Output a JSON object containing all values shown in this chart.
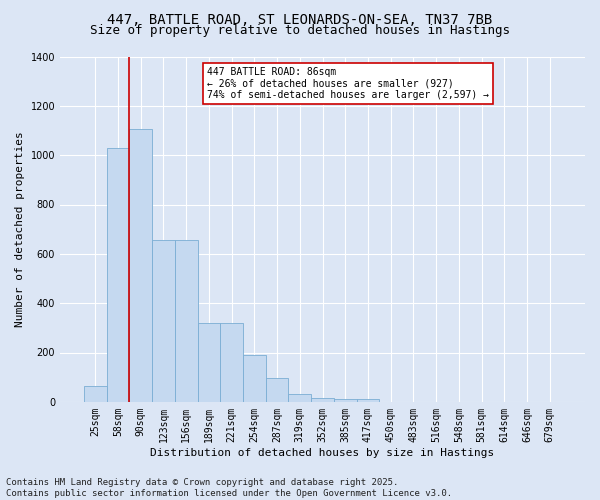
{
  "title_line1": "447, BATTLE ROAD, ST LEONARDS-ON-SEA, TN37 7BB",
  "title_line2": "Size of property relative to detached houses in Hastings",
  "xlabel": "Distribution of detached houses by size in Hastings",
  "ylabel": "Number of detached properties",
  "bar_color": "#c5d9f0",
  "bar_edge_color": "#7aadd4",
  "categories": [
    "25sqm",
    "58sqm",
    "90sqm",
    "123sqm",
    "156sqm",
    "189sqm",
    "221sqm",
    "254sqm",
    "287sqm",
    "319sqm",
    "352sqm",
    "385sqm",
    "417sqm",
    "450sqm",
    "483sqm",
    "516sqm",
    "548sqm",
    "581sqm",
    "614sqm",
    "646sqm",
    "679sqm"
  ],
  "values": [
    65,
    1030,
    1105,
    655,
    655,
    320,
    320,
    190,
    95,
    30,
    15,
    12,
    10,
    0,
    0,
    0,
    0,
    0,
    0,
    0,
    0
  ],
  "ylim": [
    0,
    1400
  ],
  "yticks": [
    0,
    200,
    400,
    600,
    800,
    1000,
    1200,
    1400
  ],
  "vline_color": "#cc0000",
  "annotation_text": "447 BATTLE ROAD: 86sqm\n← 26% of detached houses are smaller (927)\n74% of semi-detached houses are larger (2,597) →",
  "annotation_box_color": "#ffffff",
  "annotation_box_edge": "#cc0000",
  "footer_line1": "Contains HM Land Registry data © Crown copyright and database right 2025.",
  "footer_line2": "Contains public sector information licensed under the Open Government Licence v3.0.",
  "bg_color": "#dce6f5",
  "plot_bg_color": "#dce6f5",
  "grid_color": "#ffffff",
  "title_fontsize": 10,
  "subtitle_fontsize": 9,
  "tick_fontsize": 7,
  "label_fontsize": 8,
  "annotation_fontsize": 7,
  "footer_fontsize": 6.5
}
